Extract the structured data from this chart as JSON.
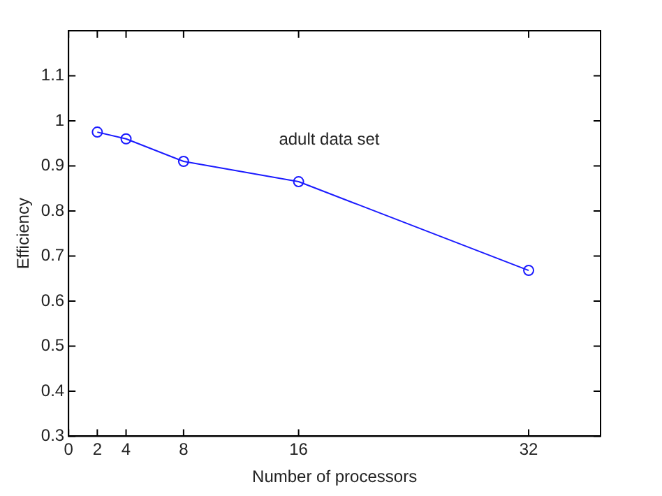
{
  "chart_data": {
    "type": "line",
    "xlabel": "Number of processors",
    "ylabel": "Efficiency",
    "x": [
      2,
      4,
      8,
      16,
      32
    ],
    "series": [
      {
        "name": "adult data set",
        "color": "#1a1aff",
        "values": [
          0.975,
          0.96,
          0.91,
          0.865,
          0.668
        ]
      }
    ],
    "xlim": [
      0,
      37
    ],
    "xticks": [
      0,
      2,
      4,
      8,
      16,
      32
    ],
    "ylim": [
      0.3,
      1.2
    ],
    "yticks": [
      0.3,
      0.4,
      0.5,
      0.6,
      0.7,
      0.8,
      0.9,
      1,
      1.1
    ],
    "grid": false,
    "legend": false,
    "marker": "circle",
    "line_style": "solid"
  }
}
